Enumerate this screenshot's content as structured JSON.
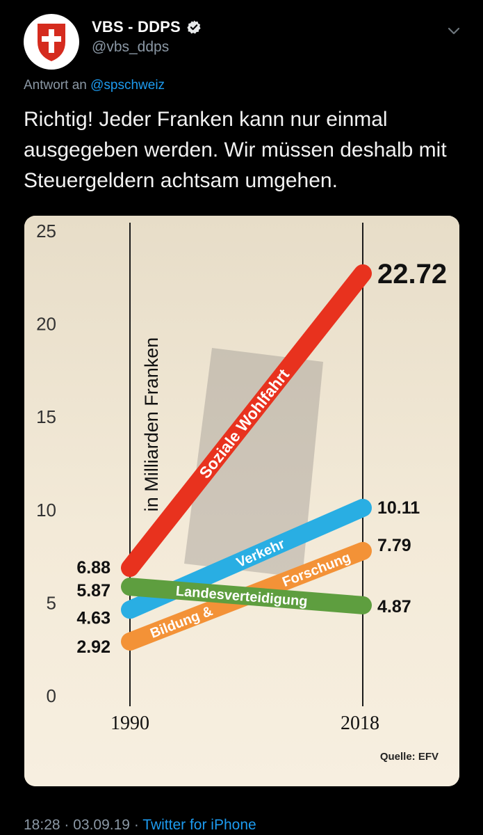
{
  "account": {
    "display_name": "VBS - DDPS",
    "handle": "@vbs_ddps",
    "verified_icon": "verified-badge-icon",
    "avatar_icon": "swiss-cross-icon"
  },
  "reply": {
    "prefix": "Antwort an",
    "mention": "@spschweiz"
  },
  "tweet": {
    "text": "Richtig! Jeder Franken kann nur einmal ausgegeben werden. Wir müssen deshalb mit Steuergeldern achtsam umgehen."
  },
  "meta": {
    "time": "18:28",
    "separator": " · ",
    "date": "03.09.19",
    "source": "Twitter for iPhone"
  },
  "colors": {
    "background": "#000000",
    "secondary_text": "#8b98a5",
    "link": "#1d9bf0",
    "chart_background": "#efe4cf"
  },
  "chart_data": {
    "type": "line",
    "ylabel": "in Milliarden Franken",
    "x": [
      "1990",
      "2018"
    ],
    "ylim": [
      0,
      25
    ],
    "yticks": [
      "0",
      "5",
      "10",
      "15",
      "20",
      "25"
    ],
    "source": "Quelle: EFV",
    "series": [
      {
        "name": "Soziale Wohlfahrt",
        "values": [
          6.88,
          22.72
        ],
        "start_label": "6.88",
        "end_label": "22.72",
        "color": "#e8321e"
      },
      {
        "name": "Verkehr",
        "values": [
          4.63,
          10.11
        ],
        "start_label": "4.63",
        "end_label": "10.11",
        "color": "#29aee3"
      },
      {
        "name": "Bildung & Forschung",
        "values": [
          2.92,
          7.79
        ],
        "start_label": "2.92",
        "end_label": "7.79",
        "color": "#f39237"
      },
      {
        "name": "Landesverteidigung",
        "values": [
          5.87,
          4.87
        ],
        "start_label": "5.87",
        "end_label": "4.87",
        "color": "#5e9e3f"
      }
    ],
    "band_labels": {
      "wohlfahrt": "Soziale Wohlfahrt",
      "verkehr": "Verkehr",
      "bildung": "Bildung &",
      "forschung": "Forschung",
      "landesverteidigung": "Landesverteidigung"
    }
  }
}
